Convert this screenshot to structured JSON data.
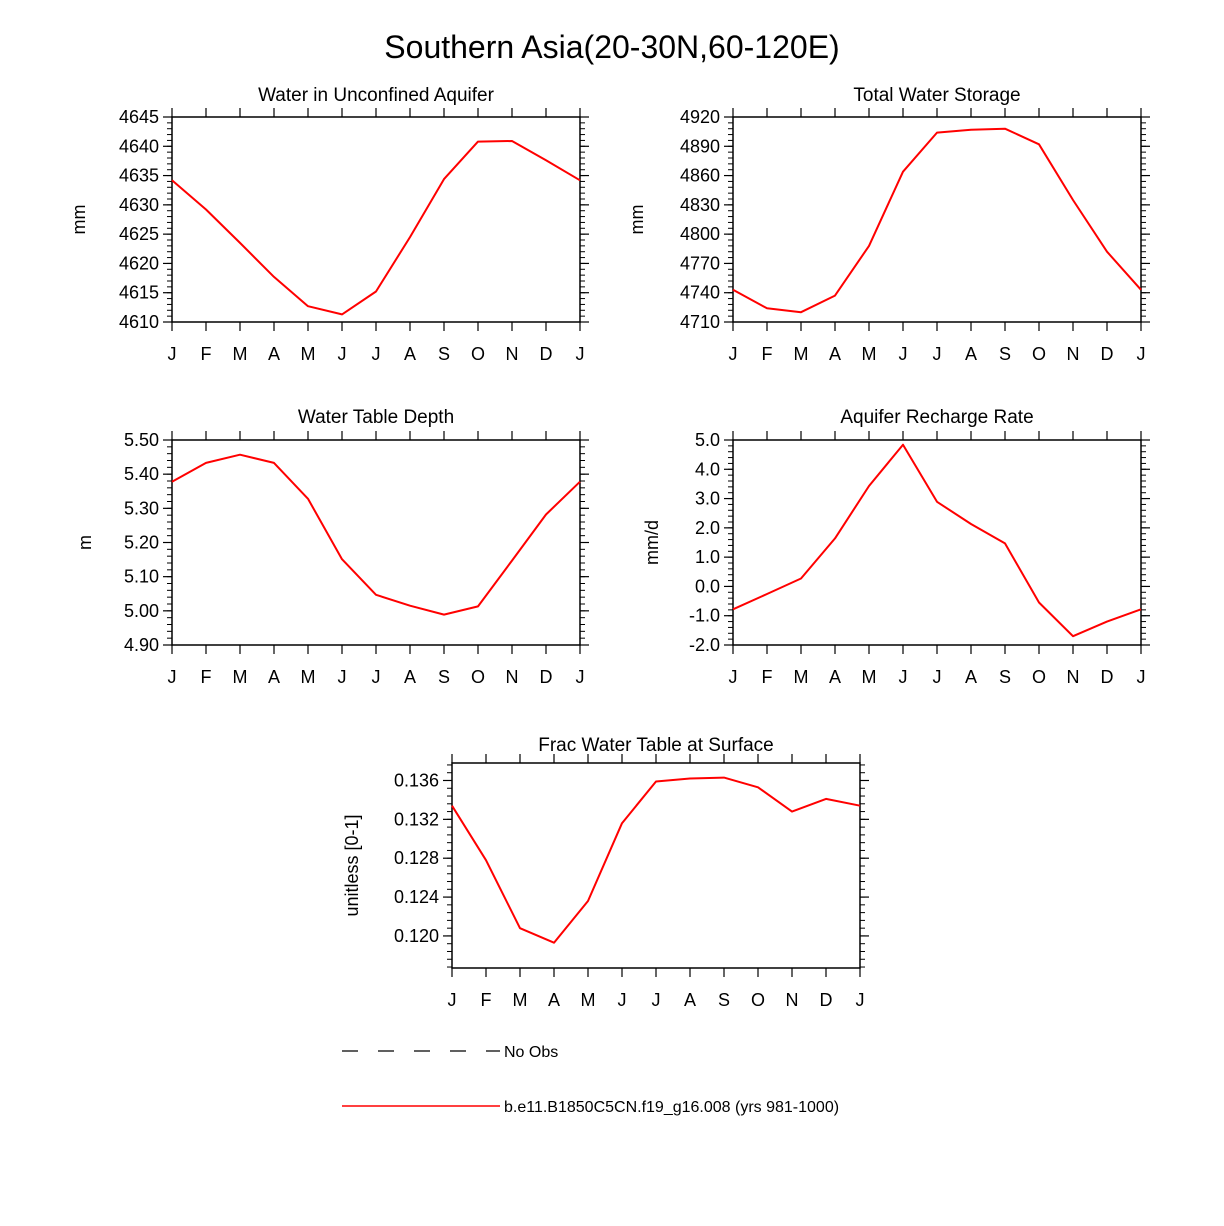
{
  "page_title": "Southern Asia(20-30N,60-120E)",
  "month_labels": [
    "J",
    "F",
    "M",
    "A",
    "M",
    "J",
    "J",
    "A",
    "S",
    "O",
    "N",
    "D",
    "J"
  ],
  "colors": {
    "model_line": "#ff0000",
    "obs_line": "#000000",
    "axis": "#000000"
  },
  "chart_data": [
    {
      "type": "line",
      "title": "Water in Unconfined Aquifer",
      "ylabel": "mm",
      "ylim": [
        4610,
        4645
      ],
      "yticks": [
        4610,
        4615,
        4620,
        4625,
        4630,
        4635,
        4640,
        4645
      ],
      "ytick_labels": [
        "4610",
        "4615",
        "4620",
        "4625",
        "4630",
        "4635",
        "4640",
        "4645"
      ],
      "values": [
        4634.2,
        4629.2,
        4623.5,
        4617.7,
        4612.7,
        4611.3,
        4615.2,
        4624.5,
        4634.4,
        4640.8,
        4640.9,
        4637.6,
        4634.2
      ]
    },
    {
      "type": "line",
      "title": "Total Water Storage",
      "ylabel": "mm",
      "ylim": [
        4710,
        4920
      ],
      "yticks": [
        4710,
        4740,
        4770,
        4800,
        4830,
        4860,
        4890,
        4920
      ],
      "ytick_labels": [
        "4710",
        "4740",
        "4770",
        "4800",
        "4830",
        "4860",
        "4890",
        "4920"
      ],
      "values": [
        4743,
        4724,
        4720,
        4737,
        4788,
        4864,
        4904,
        4907,
        4908,
        4892,
        4835,
        4782,
        4743
      ]
    },
    {
      "type": "line",
      "title": "Water Table Depth",
      "ylabel": "m",
      "ylim": [
        4.9,
        5.5
      ],
      "yticks": [
        4.9,
        5.0,
        5.1,
        5.2,
        5.3,
        5.4,
        5.5
      ],
      "ytick_labels": [
        "4.90",
        "5.00",
        "5.10",
        "5.20",
        "5.30",
        "5.40",
        "5.50"
      ],
      "values": [
        5.378,
        5.433,
        5.457,
        5.433,
        5.328,
        5.151,
        5.047,
        5.015,
        4.989,
        5.013,
        5.147,
        5.282,
        5.378
      ]
    },
    {
      "type": "line",
      "title": "Aquifer Recharge Rate",
      "ylabel": "mm/d",
      "ylim": [
        -2.0,
        5.0
      ],
      "yticks": [
        -2,
        -1,
        0,
        1,
        2,
        3,
        4,
        5
      ],
      "ytick_labels": [
        "-2.0",
        "-1.0",
        "0.0",
        "1.0",
        "2.0",
        "3.0",
        "4.0",
        "5.0"
      ],
      "values": [
        -0.78,
        -0.26,
        0.27,
        1.64,
        3.43,
        4.84,
        2.89,
        2.13,
        1.47,
        -0.55,
        -1.7,
        -1.2,
        -0.78
      ]
    },
    {
      "type": "line",
      "title": "Frac Water Table at Surface",
      "ylabel": "unitless [0-1]",
      "ylim": [
        0.1167,
        0.1378
      ],
      "yticks": [
        0.12,
        0.124,
        0.128,
        0.132,
        0.136
      ],
      "ytick_labels": [
        "0.120",
        "0.124",
        "0.128",
        "0.132",
        "0.136"
      ],
      "values": [
        0.1334,
        0.1278,
        0.1208,
        0.1193,
        0.1236,
        0.1316,
        0.1359,
        0.1362,
        0.1363,
        0.1353,
        0.1328,
        0.1341,
        0.1334
      ]
    }
  ],
  "legend": {
    "obs_label": "No Obs",
    "model_label": "b.e11.B1850C5CN.f19_g16.008 (yrs 981-1000)"
  }
}
